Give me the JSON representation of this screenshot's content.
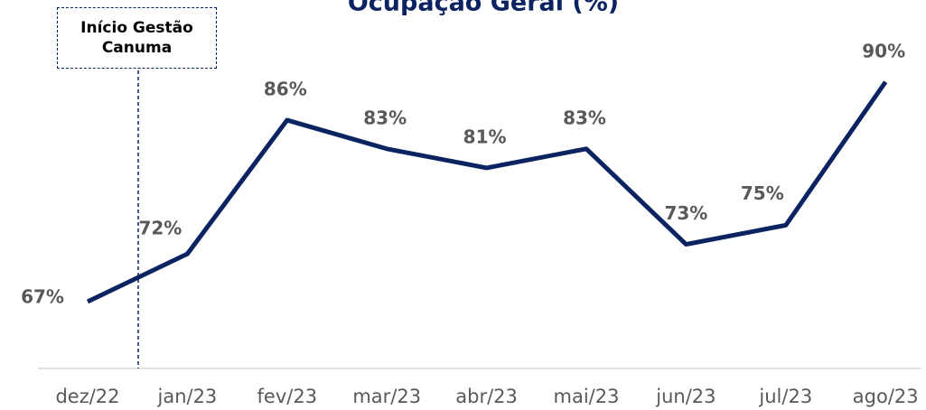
{
  "chart_data": {
    "type": "line",
    "title": "Ocupação Geral (%)",
    "annotation": "Início Gestão Canuma",
    "categories": [
      "dez/22",
      "jan/23",
      "fev/23",
      "mar/23",
      "abr/23",
      "mai/23",
      "jun/23",
      "jul/23",
      "ago/23"
    ],
    "series": [
      {
        "name": "Ocupação Geral",
        "color": "#0b2461",
        "values": [
          67,
          72,
          86,
          83,
          81,
          83,
          73,
          75,
          90
        ],
        "value_labels": [
          "67%",
          "72%",
          "86%",
          "83%",
          "81%",
          "83%",
          "73%",
          "75%",
          "90%"
        ]
      }
    ],
    "ylim": [
      60,
      100
    ]
  }
}
